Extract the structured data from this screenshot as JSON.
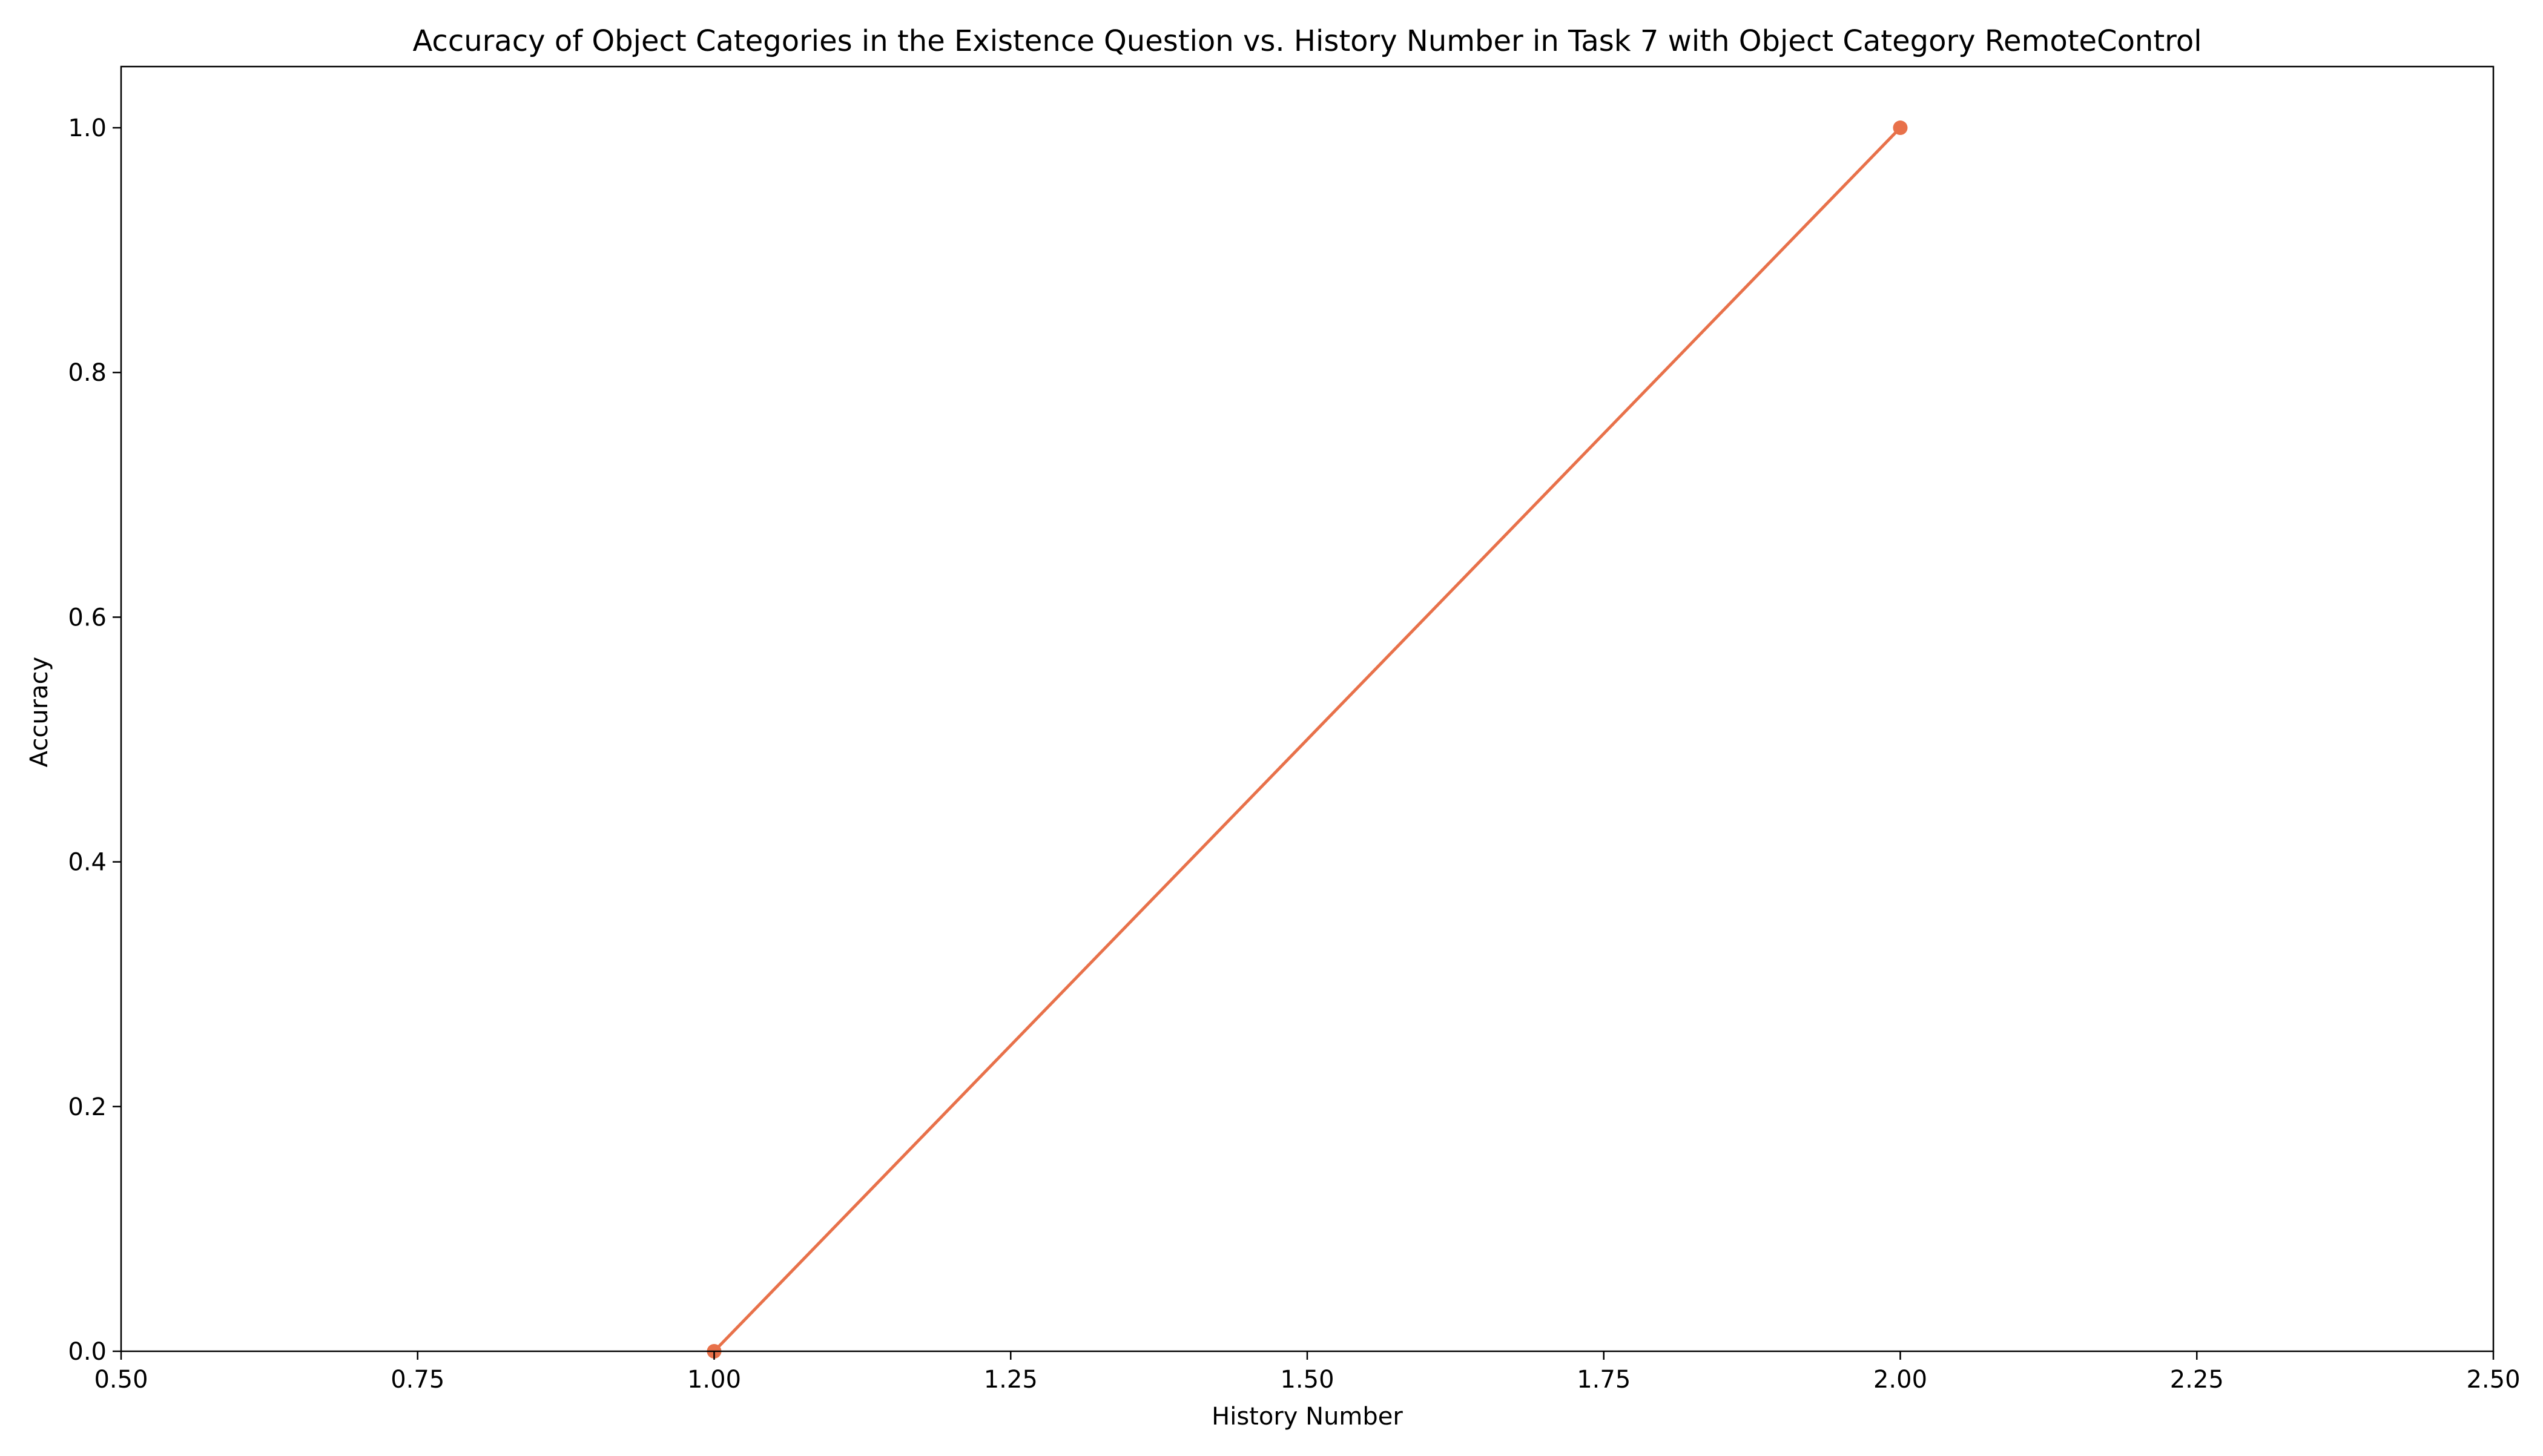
{
  "chart_data": {
    "type": "line",
    "title": "Accuracy of Object Categories in the Existence Question vs. History Number in Task 7 with Object Category RemoteControl",
    "xlabel": "History Number",
    "ylabel": "Accuracy",
    "xlim": [
      0.5,
      2.5
    ],
    "ylim": [
      0.0,
      1.05
    ],
    "xticks": [
      0.5,
      0.75,
      1.0,
      1.25,
      1.5,
      1.75,
      2.0,
      2.25,
      2.5
    ],
    "xtick_labels": [
      "0.50",
      "0.75",
      "1.00",
      "1.25",
      "1.50",
      "1.75",
      "2.00",
      "2.25",
      "2.50"
    ],
    "yticks": [
      0.0,
      0.2,
      0.4,
      0.6,
      0.8,
      1.0
    ],
    "ytick_labels": [
      "0.0",
      "0.2",
      "0.4",
      "0.6",
      "0.8",
      "1.0"
    ],
    "grid": false,
    "series": [
      {
        "color": "#e8714a",
        "marker": "circle",
        "x": [
          1.0,
          2.0
        ],
        "y": [
          0.0,
          1.0
        ]
      }
    ]
  }
}
